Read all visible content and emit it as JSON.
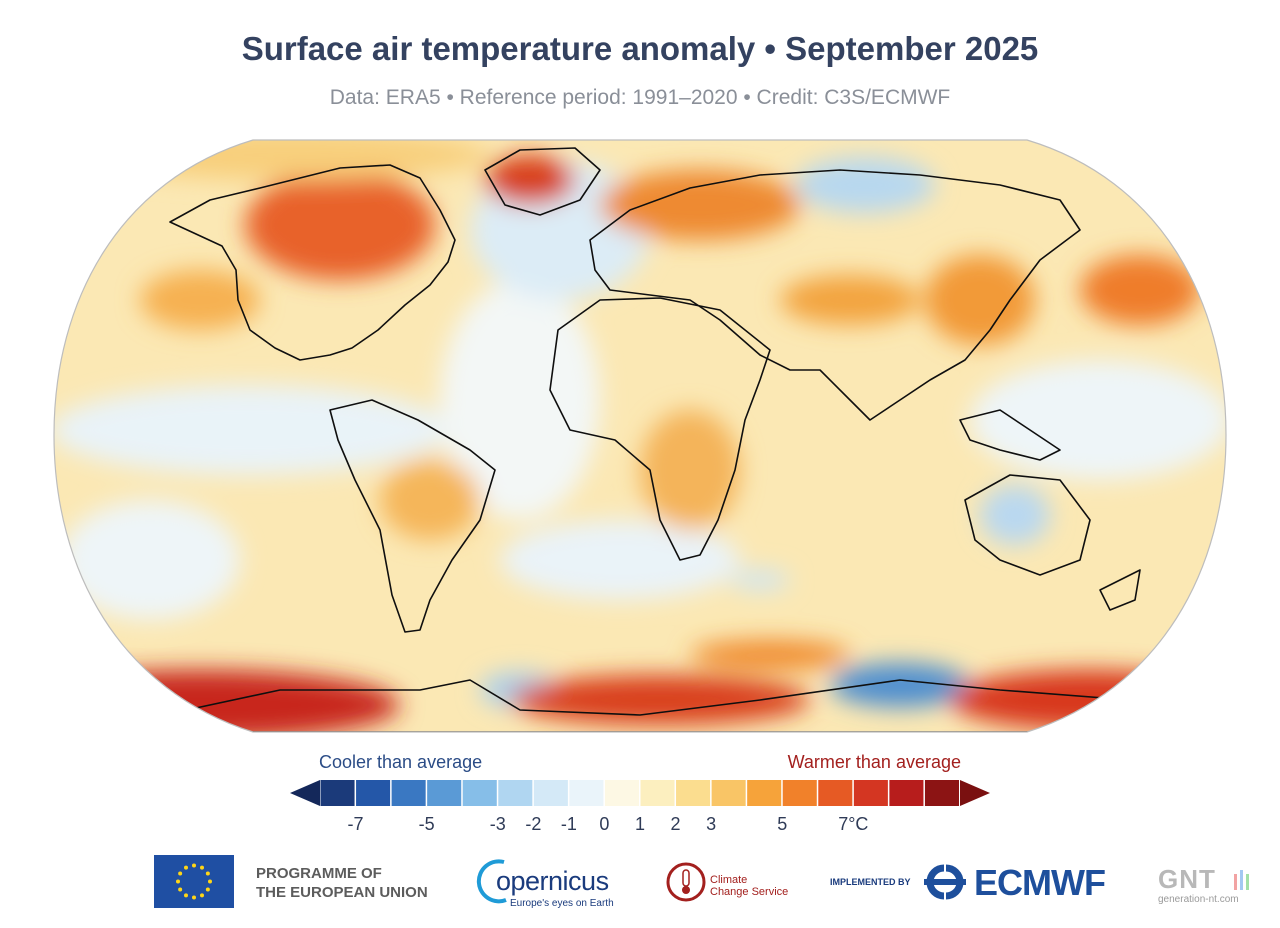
{
  "title": "Surface air temperature anomaly • September 2025",
  "subtitle": "Data: ERA5 • Reference period: 1991–2020 • Credit: C3S/ECMWF",
  "colorbar": {
    "cool_label": "Cooler than average",
    "warm_label": "Warmer than average",
    "ticks": [
      "-7",
      "-5",
      "-3",
      "-2",
      "-1",
      "0",
      "1",
      "2",
      "3",
      "5",
      "7°C"
    ],
    "colors": [
      "#1b3a7a",
      "#2457a8",
      "#3a78c2",
      "#5a9ad6",
      "#86bee8",
      "#b0d6f1",
      "#d4e9f7",
      "#eaf4fa",
      "#fdf8e4",
      "#fcefbf",
      "#fbdd8f",
      "#f9c566",
      "#f6a33a",
      "#f1812a",
      "#e65a24",
      "#d43622",
      "#b71d1c",
      "#8c1414"
    ],
    "cold_arrow_color": "#14285a",
    "warm_arrow_color": "#7a1010"
  },
  "footer": {
    "eu_line1": "PROGRAMME OF",
    "eu_line2": "THE EUROPEAN UNION",
    "copernicus": "opernicus",
    "copernicus_tagline": "Europe's eyes on Earth",
    "c3s_line1": "Climate",
    "c3s_line2": "Change Service",
    "implemented_by": "IMPLEMENTED BY",
    "ecmwf": "ECMWF",
    "gnt": "GNT",
    "gnt_url": "generation-nt.com"
  }
}
